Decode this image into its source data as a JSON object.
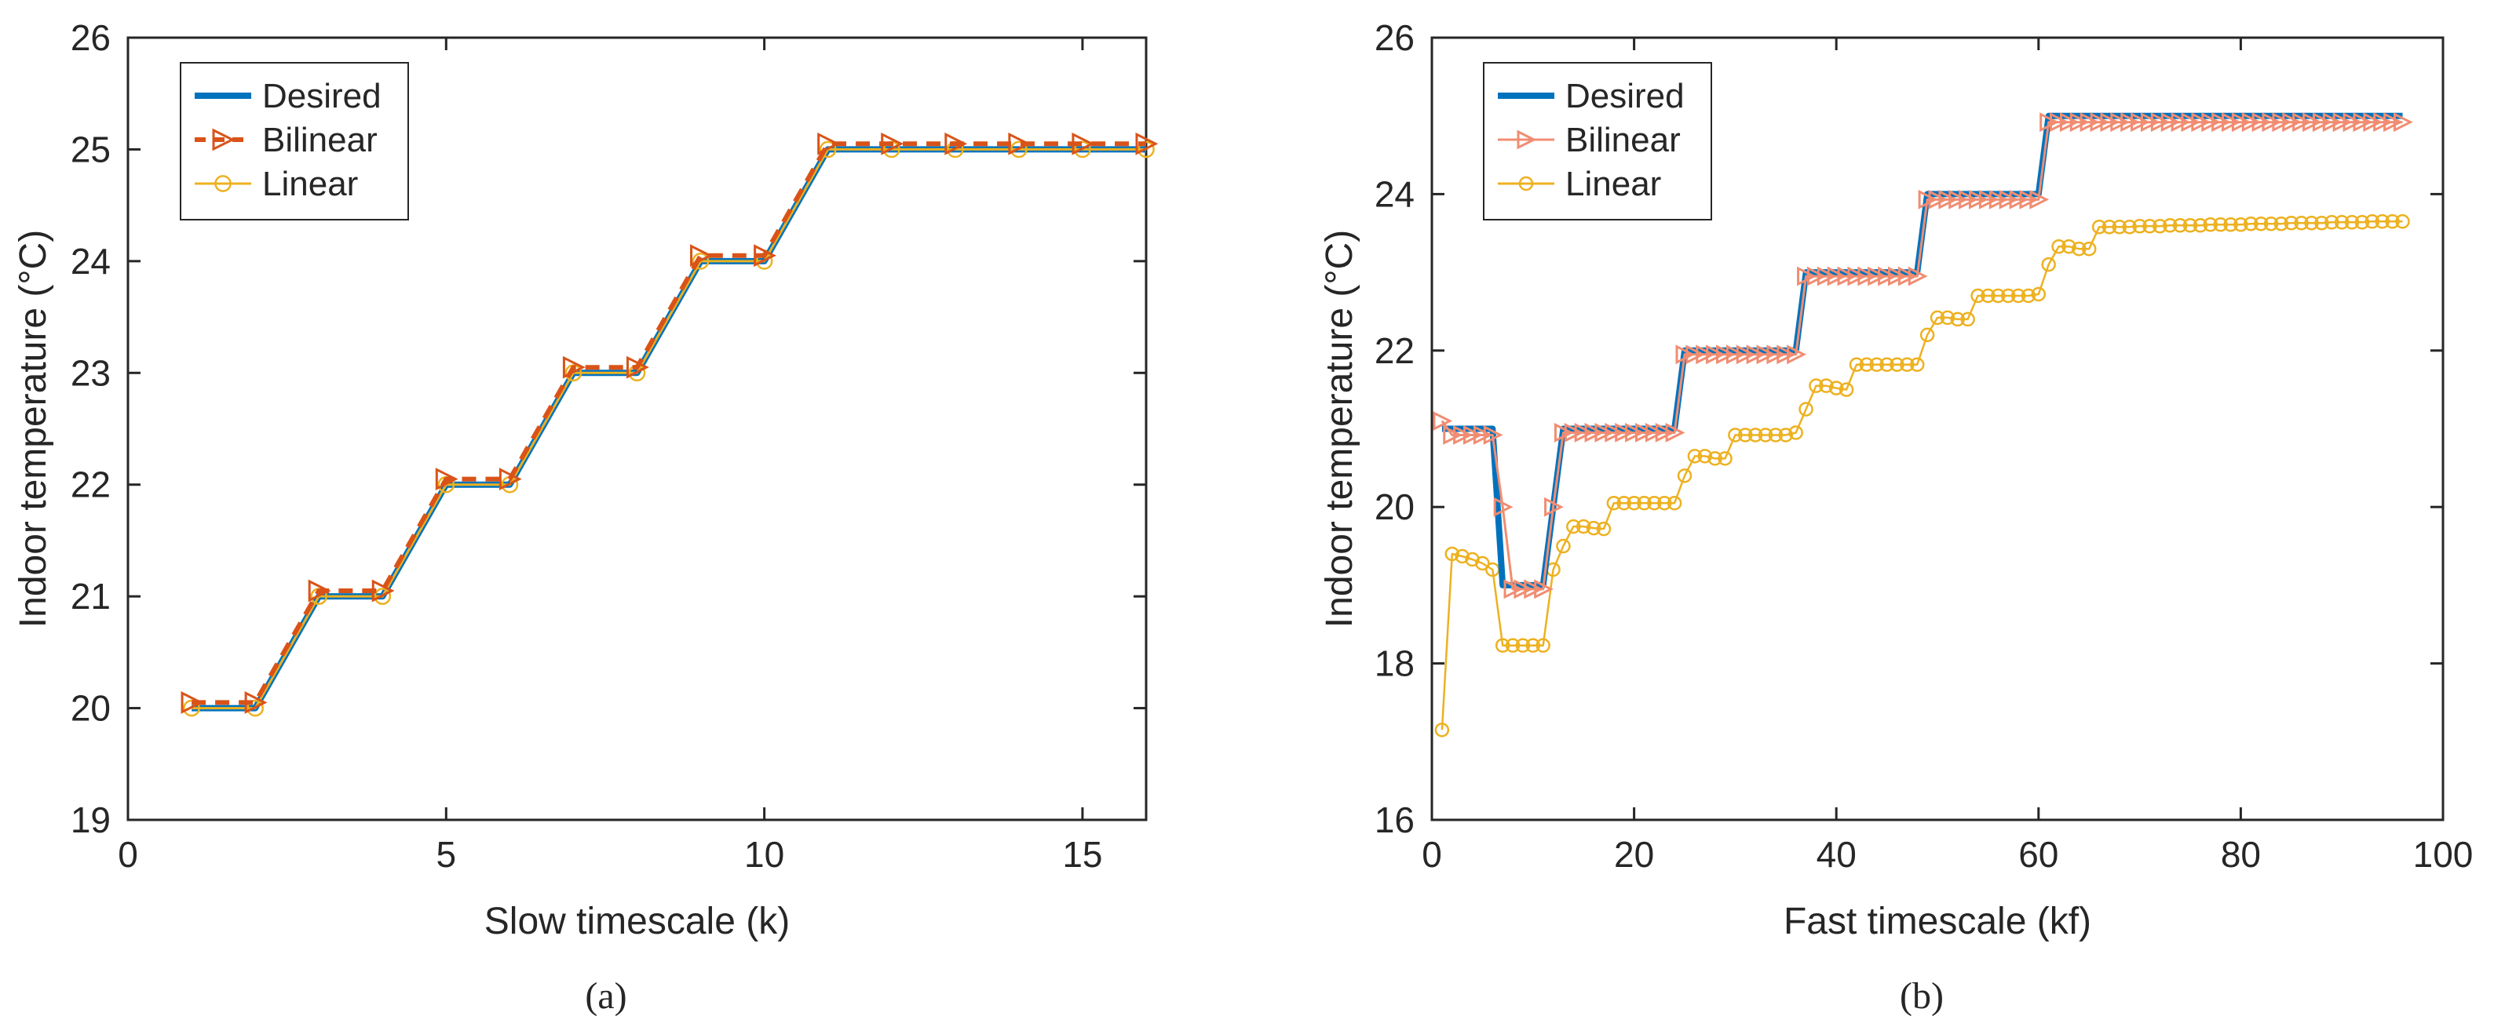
{
  "chart_data": [
    {
      "type": "line",
      "panel": "(a)",
      "xlabel": "Slow timescale (k)",
      "ylabel": "Indoor temperature (°C)",
      "xlim": [
        0,
        16
      ],
      "ylim": [
        19,
        26
      ],
      "xticks": [
        0,
        5,
        10,
        15
      ],
      "yticks": [
        19,
        20,
        21,
        22,
        23,
        24,
        25,
        26
      ],
      "legend_position": "top-left",
      "series": [
        {
          "name": "Desired",
          "color": "#0072BD",
          "style": "solid",
          "marker": "none",
          "x": [
            1,
            2,
            3,
            4,
            5,
            6,
            7,
            8,
            9,
            10,
            11,
            12,
            13,
            14,
            15,
            16
          ],
          "y": [
            20,
            20,
            21,
            21,
            22,
            22,
            23,
            23,
            24,
            24,
            25,
            25,
            25,
            25,
            25,
            25
          ]
        },
        {
          "name": "Bilinear",
          "color": "#D95319",
          "style": "dashed",
          "marker": "triangle-right",
          "x": [
            1,
            2,
            3,
            4,
            5,
            6,
            7,
            8,
            9,
            10,
            11,
            12,
            13,
            14,
            15,
            16
          ],
          "y": [
            20.05,
            20.05,
            21.05,
            21.05,
            22.05,
            22.05,
            23.05,
            23.05,
            24.05,
            24.05,
            25.05,
            25.05,
            25.05,
            25.05,
            25.05,
            25.05
          ]
        },
        {
          "name": "Linear",
          "color": "#EDB120",
          "style": "solid",
          "marker": "circle",
          "x": [
            1,
            2,
            3,
            4,
            5,
            6,
            7,
            8,
            9,
            10,
            11,
            12,
            13,
            14,
            15,
            16
          ],
          "y": [
            20,
            20,
            21,
            21,
            22,
            22,
            23,
            23,
            24,
            24,
            25,
            25,
            25,
            25,
            25,
            25
          ]
        }
      ]
    },
    {
      "type": "line",
      "panel": "(b)",
      "xlabel": "Fast timescale (kf)",
      "ylabel": "Indoor temperature (°C)",
      "xlim": [
        0,
        100
      ],
      "ylim": [
        16,
        26
      ],
      "xticks": [
        0,
        20,
        40,
        60,
        80,
        100
      ],
      "yticks": [
        16,
        18,
        20,
        22,
        24,
        26
      ],
      "legend_position": "top-left",
      "series": [
        {
          "name": "Desired",
          "color": "#0072BD",
          "style": "solid",
          "marker": "none",
          "x": [
            1,
            6,
            7,
            11,
            13,
            24,
            25,
            36,
            37,
            48,
            49,
            60,
            61,
            96
          ],
          "y": [
            21,
            21,
            19,
            19,
            21,
            21,
            22,
            22,
            23,
            23,
            24,
            24,
            25,
            25
          ]
        },
        {
          "name": "Bilinear",
          "color": "#F08D72",
          "style": "solid",
          "marker": "triangle-right",
          "x": [
            1,
            2,
            3,
            4,
            5,
            6,
            7,
            8,
            9,
            10,
            11,
            12,
            13,
            14,
            15,
            16,
            17,
            18,
            19,
            20,
            21,
            22,
            23,
            24,
            25,
            26,
            27,
            28,
            29,
            30,
            31,
            32,
            33,
            34,
            35,
            36,
            37,
            38,
            39,
            40,
            41,
            42,
            43,
            44,
            45,
            46,
            47,
            48,
            49,
            50,
            51,
            52,
            53,
            54,
            55,
            56,
            57,
            58,
            59,
            60,
            61,
            62,
            63,
            64,
            65,
            66,
            67,
            68,
            69,
            70,
            71,
            72,
            73,
            74,
            75,
            76,
            77,
            78,
            79,
            80,
            81,
            82,
            83,
            84,
            85,
            86,
            87,
            88,
            89,
            90,
            91,
            92,
            93,
            94,
            95,
            96
          ],
          "y": [
            21.1,
            20.92,
            20.92,
            20.92,
            20.92,
            20.92,
            20.0,
            18.95,
            18.95,
            18.95,
            18.95,
            20.0,
            20.95,
            20.95,
            20.95,
            20.95,
            20.95,
            20.95,
            20.95,
            20.95,
            20.95,
            20.95,
            20.95,
            20.95,
            21.95,
            21.95,
            21.95,
            21.95,
            21.95,
            21.95,
            21.95,
            21.95,
            21.95,
            21.95,
            21.95,
            21.95,
            22.95,
            22.95,
            22.95,
            22.95,
            22.95,
            22.95,
            22.95,
            22.95,
            22.95,
            22.95,
            22.95,
            22.95,
            23.93,
            23.93,
            23.93,
            23.93,
            23.93,
            23.93,
            23.93,
            23.93,
            23.93,
            23.93,
            23.93,
            23.93,
            24.92,
            24.92,
            24.92,
            24.92,
            24.92,
            24.92,
            24.92,
            24.92,
            24.92,
            24.92,
            24.92,
            24.92,
            24.92,
            24.92,
            24.92,
            24.92,
            24.92,
            24.92,
            24.92,
            24.92,
            24.92,
            24.92,
            24.92,
            24.92,
            24.92,
            24.92,
            24.92,
            24.92,
            24.92,
            24.92,
            24.92,
            24.92,
            24.92,
            24.92,
            24.92,
            24.92
          ]
        },
        {
          "name": "Linear",
          "color": "#EDB120",
          "style": "solid",
          "marker": "circle",
          "x": [
            1,
            2,
            3,
            4,
            5,
            6,
            7,
            8,
            9,
            10,
            11,
            12,
            13,
            14,
            15,
            16,
            17,
            18,
            19,
            20,
            21,
            22,
            23,
            24,
            25,
            26,
            27,
            28,
            29,
            30,
            31,
            32,
            33,
            34,
            35,
            36,
            37,
            38,
            39,
            40,
            41,
            42,
            43,
            44,
            45,
            46,
            47,
            48,
            49,
            50,
            51,
            52,
            53,
            54,
            55,
            56,
            57,
            58,
            59,
            60,
            61,
            62,
            63,
            64,
            65,
            66,
            67,
            68,
            69,
            70,
            71,
            72,
            73,
            74,
            75,
            76,
            77,
            78,
            79,
            80,
            81,
            82,
            83,
            84,
            85,
            86,
            87,
            88,
            89,
            90,
            91,
            92,
            93,
            94,
            95,
            96
          ],
          "y": [
            17.15,
            19.4,
            19.37,
            19.33,
            19.28,
            19.2,
            18.23,
            18.23,
            18.23,
            18.23,
            18.23,
            19.2,
            19.5,
            19.75,
            19.75,
            19.73,
            19.72,
            20.05,
            20.05,
            20.05,
            20.05,
            20.05,
            20.05,
            20.05,
            20.4,
            20.65,
            20.65,
            20.62,
            20.62,
            20.92,
            20.92,
            20.92,
            20.92,
            20.92,
            20.92,
            20.95,
            21.25,
            21.55,
            21.55,
            21.52,
            21.5,
            21.82,
            21.82,
            21.82,
            21.82,
            21.82,
            21.82,
            21.82,
            22.2,
            22.42,
            22.42,
            22.4,
            22.4,
            22.7,
            22.7,
            22.7,
            22.7,
            22.7,
            22.7,
            22.72,
            23.1,
            23.33,
            23.33,
            23.3,
            23.3,
            23.58,
            23.58,
            23.58,
            23.58,
            23.59,
            23.59,
            23.59,
            23.6,
            23.6,
            23.6,
            23.6,
            23.61,
            23.61,
            23.61,
            23.61,
            23.62,
            23.62,
            23.62,
            23.62,
            23.63,
            23.63,
            23.63,
            23.63,
            23.64,
            23.64,
            23.64,
            23.64,
            23.65,
            23.65,
            23.65,
            23.65
          ]
        }
      ]
    }
  ]
}
